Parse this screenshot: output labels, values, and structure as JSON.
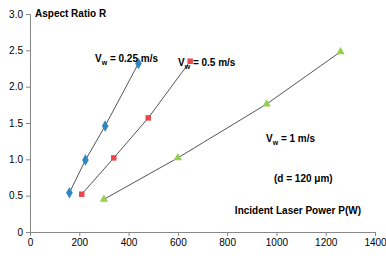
{
  "chart_data": {
    "type": "scatter",
    "x_label": "Incident Laser Power P(W)",
    "y_label": "Aspect Ratio R",
    "annotations": [
      "(d = 120 μm)"
    ],
    "xlim": [
      0,
      1400
    ],
    "xticks": [
      0,
      200,
      400,
      600,
      800,
      1000,
      1200,
      1400
    ],
    "ylim": [
      0,
      3
    ],
    "yticks": [
      0,
      0.5,
      {
        "value": 1,
        "label": "1.0"
      },
      1.5,
      {
        "value": 2,
        "label": "2.0"
      },
      2.5,
      {
        "value": 3,
        "label": "3.0"
      }
    ],
    "grid": false,
    "series": [
      {
        "name": "Vw = 0.25 m/s",
        "color": "#2e86c1",
        "marker": "diamond",
        "line_style": "solid",
        "x": [
          160,
          225,
          305,
          440
        ],
        "values": [
          0.54,
          0.99,
          1.46,
          2.32
        ]
      },
      {
        "name": "Vw = 0.5 m/s",
        "color": "#e8474c",
        "marker": "square",
        "line_style": "solid",
        "x": [
          210,
          340,
          480,
          650
        ],
        "values": [
          0.52,
          1.02,
          1.57,
          2.35
        ]
      },
      {
        "name": "Vw = 1 m/s",
        "color": "#92d050",
        "marker": "triangle",
        "line_style": "solid",
        "x": [
          300,
          600,
          960,
          1260
        ],
        "values": [
          0.45,
          1.02,
          1.76,
          2.48
        ]
      }
    ]
  }
}
